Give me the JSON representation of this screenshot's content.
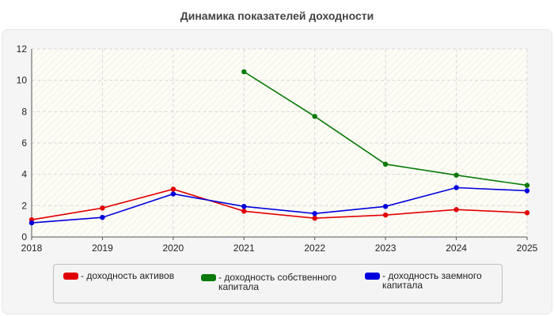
{
  "chart_data": {
    "type": "line",
    "title": "Динамика показателей доходности",
    "x": [
      "2018",
      "2019",
      "2020",
      "2021",
      "2022",
      "2023",
      "2024",
      "2025"
    ],
    "yticks": [
      "0",
      "2",
      "4",
      "6",
      "8",
      "10",
      "12"
    ],
    "ylim": [
      0,
      12
    ],
    "grid": true,
    "legend_position": "bottom",
    "series": [
      {
        "name": "- доходность активов",
        "color": "#e10000",
        "values": [
          1.1,
          1.85,
          3.05,
          1.65,
          1.2,
          1.4,
          1.75,
          1.55
        ]
      },
      {
        "name": "- доходность собственного капитала",
        "color": "#0a7a0a",
        "values": [
          null,
          null,
          null,
          10.55,
          7.7,
          4.65,
          3.95,
          3.3
        ]
      },
      {
        "name": "- доходность заемного капитала",
        "color": "#0000dd",
        "values": [
          0.9,
          1.25,
          2.75,
          1.95,
          1.5,
          1.95,
          3.15,
          2.95
        ]
      }
    ]
  }
}
